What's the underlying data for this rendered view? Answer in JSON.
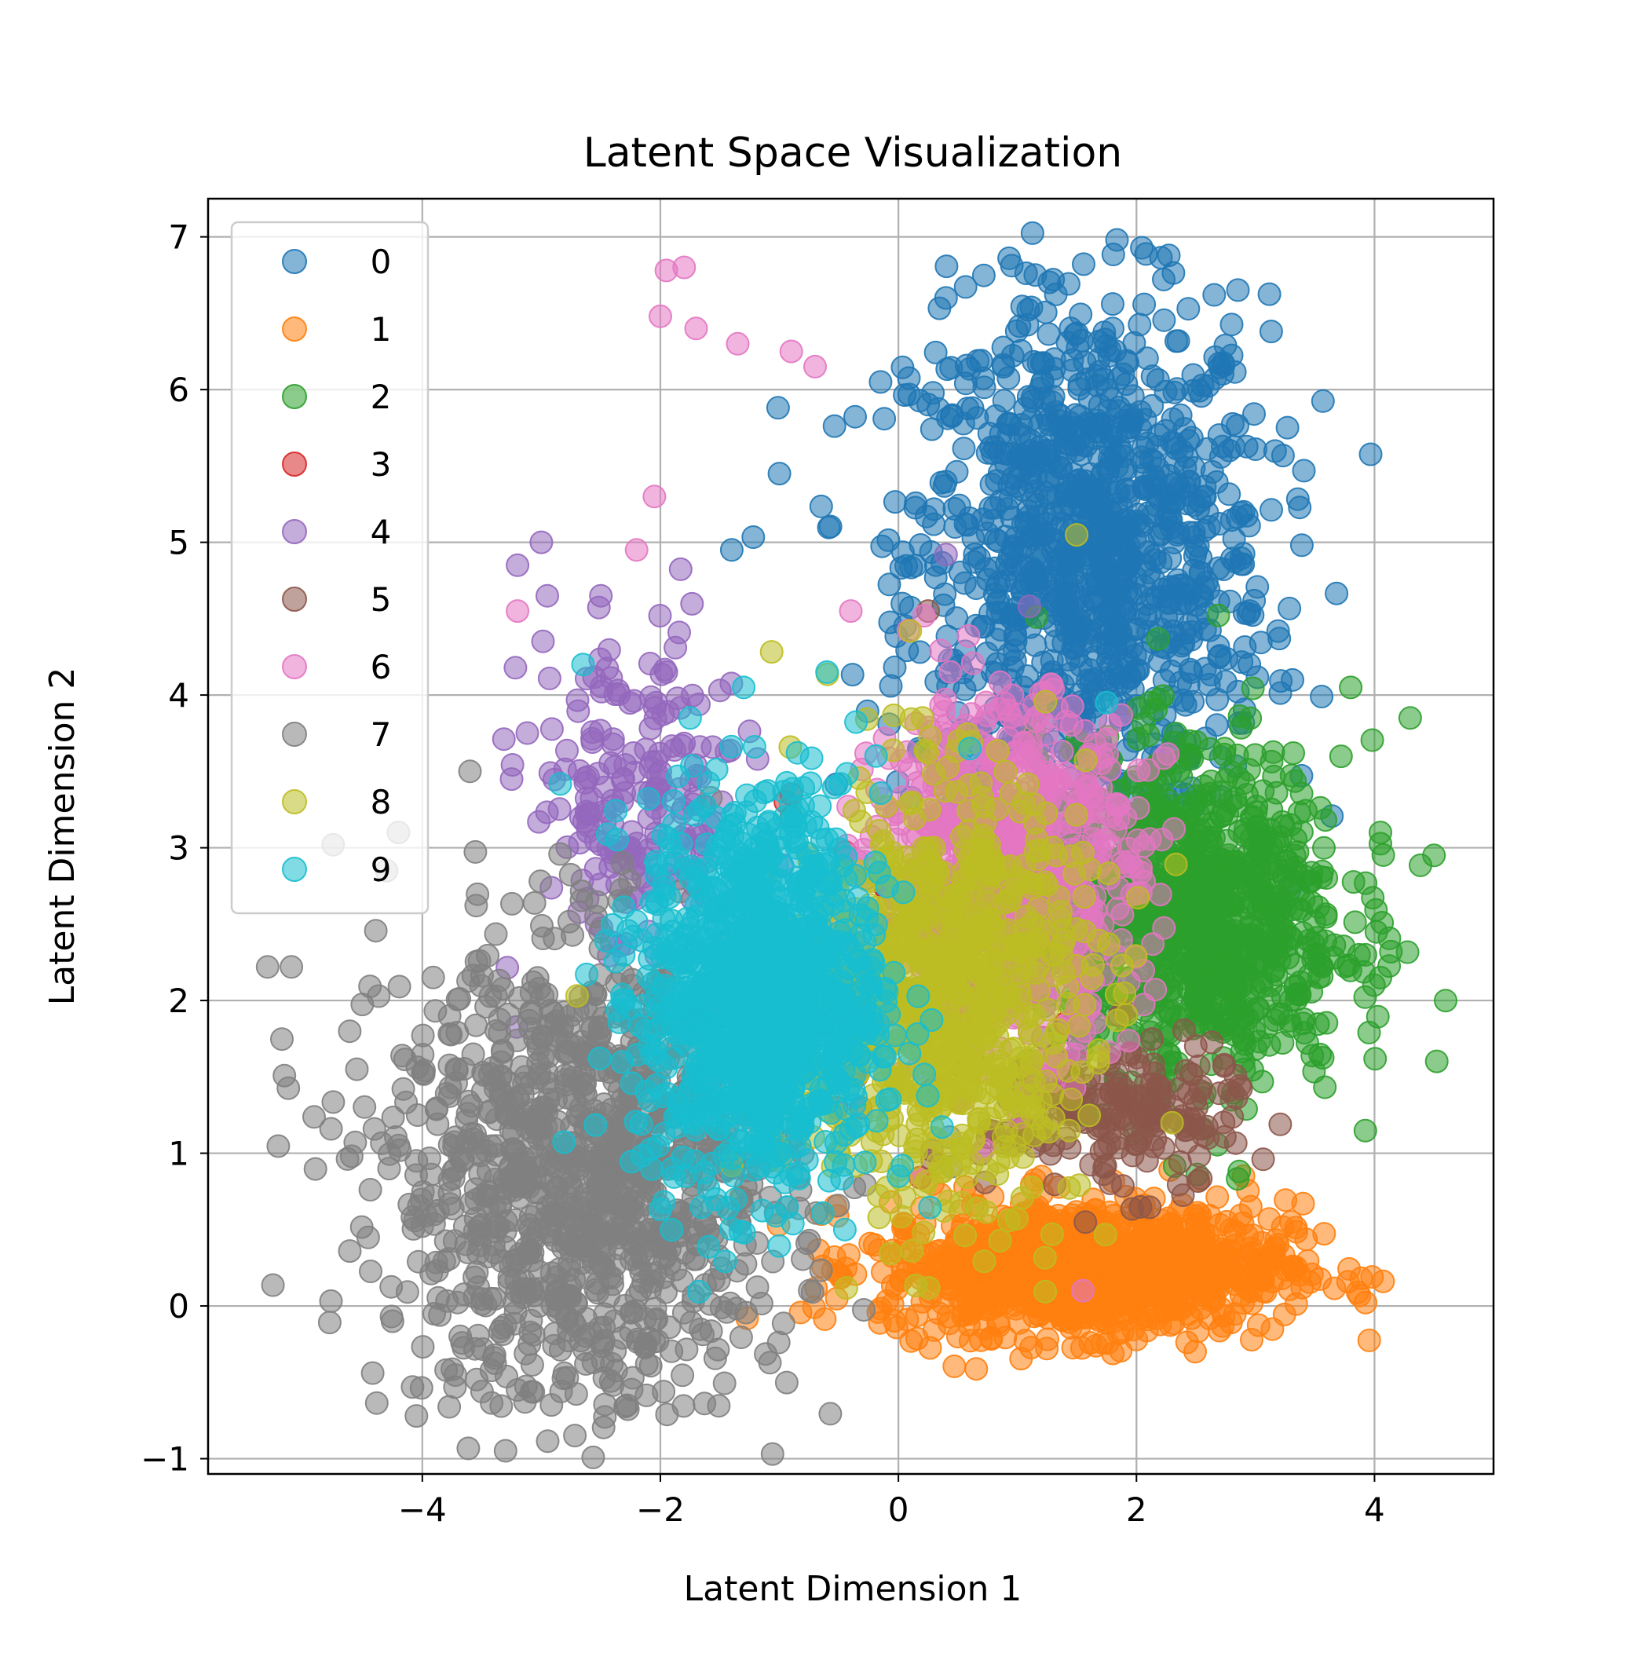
{
  "chart_data": {
    "type": "scatter",
    "title": "Latent Space Visualization",
    "xlabel": "Latent Dimension 1",
    "ylabel": "Latent Dimension 2",
    "xlim": [
      -5.8,
      5.0
    ],
    "ylim": [
      -1.1,
      7.25
    ],
    "grid": true,
    "legend_position": "upper-left",
    "marker_alpha": 0.55,
    "x_ticks": [
      -4,
      -2,
      0,
      2,
      4
    ],
    "y_ticks": [
      -1,
      0,
      1,
      2,
      3,
      4,
      5,
      6,
      7
    ],
    "series": [
      {
        "name": "0",
        "color": "#1f77b4",
        "center": [
          1.6,
          4.9
        ],
        "spread": [
          0.75,
          0.85
        ],
        "count": 1100,
        "points": [
          [
            0.93,
            6.86
          ],
          [
            1.15,
            6.75
          ],
          [
            1.3,
            6.72
          ],
          [
            0.4,
            6.6
          ],
          [
            1.8,
            6.4
          ],
          [
            3.0,
            5.61
          ],
          [
            2.9,
            5.2
          ],
          [
            -1.0,
            5.45
          ],
          [
            -1.4,
            4.95
          ],
          [
            2.2,
            3.28
          ],
          [
            -0.15,
            6.05
          ]
        ]
      },
      {
        "name": "1",
        "color": "#ff7f0e",
        "center": [
          1.55,
          0.25
        ],
        "spread": [
          0.85,
          0.22
        ],
        "count": 1000,
        "points": [
          [
            3.4,
            0.67
          ],
          [
            3.3,
            0.55
          ],
          [
            3.1,
            0.3
          ],
          [
            1.5,
            0.1
          ],
          [
            0.5,
            -0.2
          ],
          [
            2.0,
            -0.22
          ],
          [
            -0.2,
            0.4
          ]
        ]
      },
      {
        "name": "2",
        "color": "#2ca02c",
        "center": [
          2.45,
          2.55
        ],
        "spread": [
          0.65,
          0.55
        ],
        "count": 1000,
        "points": [
          [
            4.5,
            2.95
          ],
          [
            4.3,
            3.85
          ],
          [
            4.05,
            3.1
          ],
          [
            4.05,
            2.15
          ],
          [
            3.8,
            4.05
          ],
          [
            2.9,
            1.6
          ],
          [
            2.8,
            1.35
          ],
          [
            3.4,
            1.85
          ]
        ]
      },
      {
        "name": "3",
        "color": "#d62728",
        "center": [
          0.2,
          2.0
        ],
        "spread": [
          0.4,
          0.5
        ],
        "count": 40,
        "points": [
          [
            -0.95,
            3.3
          ],
          [
            -0.9,
            3.35
          ],
          [
            1.4,
            1.85
          ],
          [
            1.2,
            2.4
          ]
        ]
      },
      {
        "name": "4",
        "color": "#9467bd",
        "center": [
          -2.2,
          3.3
        ],
        "spread": [
          0.45,
          0.55
        ],
        "count": 200,
        "points": [
          [
            -3.0,
            5.0
          ],
          [
            -3.2,
            4.85
          ],
          [
            -2.95,
            4.65
          ],
          [
            -3.25,
            3.45
          ],
          [
            -2.5,
            4.65
          ],
          [
            -1.95,
            4.15
          ],
          [
            -1.5,
            4.03
          ],
          [
            0.4,
            4.92
          ],
          [
            1.1,
            4.58
          ]
        ]
      },
      {
        "name": "5",
        "color": "#8c564b",
        "center": [
          1.8,
          1.25
        ],
        "spread": [
          0.55,
          0.25
        ],
        "count": 200,
        "points": [
          [
            2.6,
            1.1
          ],
          [
            0.25,
            4.55
          ],
          [
            -0.9,
            3.2
          ]
        ]
      },
      {
        "name": "6",
        "color": "#e377c2",
        "center": [
          0.9,
          2.85
        ],
        "spread": [
          0.55,
          0.55
        ],
        "count": 800,
        "points": [
          [
            -1.95,
            6.78
          ],
          [
            -1.8,
            6.8
          ],
          [
            -2.0,
            6.48
          ],
          [
            -1.7,
            6.4
          ],
          [
            -1.35,
            6.3
          ],
          [
            -0.9,
            6.25
          ],
          [
            -0.7,
            6.15
          ],
          [
            -2.05,
            5.3
          ],
          [
            -3.2,
            4.55
          ],
          [
            -2.2,
            4.95
          ],
          [
            -0.4,
            4.55
          ],
          [
            1.55,
            0.1
          ]
        ]
      },
      {
        "name": "7",
        "color": "#7f7f7f",
        "center": [
          -2.6,
          0.85
        ],
        "spread": [
          0.85,
          0.75
        ],
        "count": 1100,
        "points": [
          [
            -5.3,
            2.22
          ],
          [
            -5.1,
            2.22
          ],
          [
            -4.75,
            3.02
          ],
          [
            -4.2,
            3.1
          ],
          [
            -4.3,
            2.85
          ],
          [
            -4.55,
            1.55
          ],
          [
            -4.2,
            1.05
          ],
          [
            -4.05,
            0.95
          ],
          [
            -3.9,
            0.6
          ],
          [
            -4.05,
            -0.72
          ],
          [
            -4.25,
            -0.1
          ],
          [
            -3.8,
            -0.42
          ],
          [
            -3.2,
            -0.55
          ],
          [
            -3.6,
            3.5
          ]
        ]
      },
      {
        "name": "8",
        "color": "#bcbd22",
        "center": [
          0.35,
          2.05
        ],
        "spread": [
          0.6,
          0.7
        ],
        "count": 800,
        "points": [
          [
            -2.7,
            2.03
          ],
          [
            -1.4,
            0.92
          ],
          [
            -1.0,
            0.95
          ],
          [
            0.1,
            4.42
          ],
          [
            2.3,
            1.2
          ]
        ]
      },
      {
        "name": "9",
        "color": "#17becf",
        "center": [
          -1.15,
          2.05
        ],
        "spread": [
          0.5,
          0.65
        ],
        "count": 1100,
        "points": [
          [
            -2.65,
            4.2
          ],
          [
            -1.75,
            3.85
          ],
          [
            -1.3,
            4.05
          ],
          [
            -0.6,
            4.15
          ],
          [
            1.75,
            3.95
          ],
          [
            0.6,
            3.65
          ],
          [
            -2.25,
            1.95
          ],
          [
            -0.45,
            0.5
          ],
          [
            0.0,
            0.85
          ],
          [
            -1.9,
            0.9
          ]
        ]
      }
    ]
  }
}
